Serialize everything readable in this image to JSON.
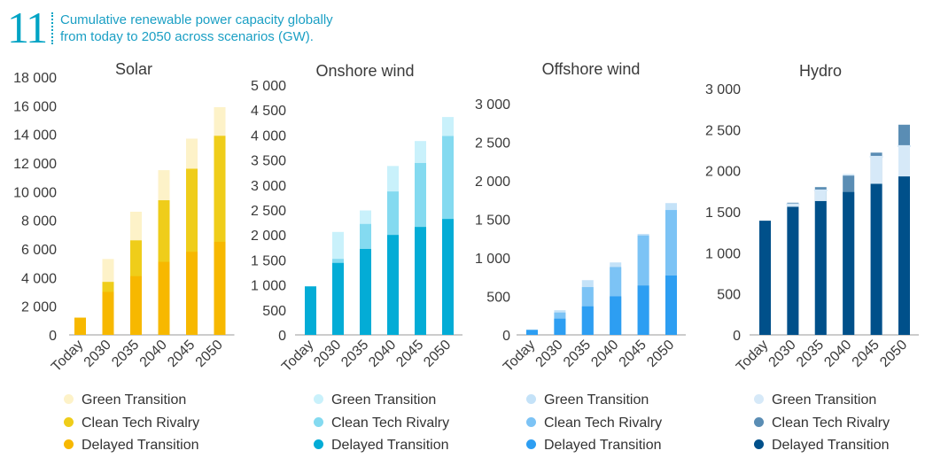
{
  "figure": {
    "number": "11",
    "title_line1": "Cumulative renewable power capacity globally",
    "title_line2": "from today to 2050 across scenarios (GW)."
  },
  "legend_labels": [
    "Green Transition",
    "Clean Tech Rivalry",
    "Delayed Transition"
  ],
  "chart_data": [
    {
      "type": "bar",
      "title": "Solar",
      "categories": [
        "Today",
        "2030",
        "2035",
        "2040",
        "2045",
        "2050"
      ],
      "ylim": [
        0,
        18000
      ],
      "yticks": [
        0,
        2000,
        4000,
        6000,
        8000,
        10000,
        12000,
        14000,
        16000,
        18000
      ],
      "ytick_labels": [
        "0",
        "2 000",
        "4 000",
        "6 000",
        "8 000",
        "10 000",
        "12 000",
        "14 000",
        "16 000",
        "18 000"
      ],
      "colors": {
        "Delayed Transition": "#f7b800",
        "Clean Tech Rivalry": "#efcd1a",
        "Green Transition": "#fdf2c8"
      },
      "series": [
        {
          "name": "Delayed Transition",
          "values": [
            1200,
            3000,
            4100,
            5100,
            5800,
            6500
          ]
        },
        {
          "name": "Clean Tech Rivalry",
          "values": [
            1200,
            3700,
            6600,
            9400,
            11600,
            13900
          ]
        },
        {
          "name": "Green Transition",
          "values": [
            1200,
            5300,
            8600,
            11500,
            13700,
            15900
          ]
        }
      ]
    },
    {
      "type": "bar",
      "title": "Onshore wind",
      "categories": [
        "Today",
        "2030",
        "2035",
        "2040",
        "2045",
        "2050"
      ],
      "ylim": [
        0,
        5000
      ],
      "yticks": [
        0,
        500,
        1000,
        1500,
        2000,
        2500,
        3000,
        3500,
        4000,
        4500,
        5000
      ],
      "ytick_labels": [
        "0",
        "500",
        "1 000",
        "1 500",
        "2 000",
        "2 500",
        "3 000",
        "3 500",
        "4 000",
        "4 500",
        "5 000"
      ],
      "colors": {
        "Delayed Transition": "#03acd6",
        "Clean Tech Rivalry": "#84daf0",
        "Green Transition": "#c9f1fb"
      },
      "series": [
        {
          "name": "Delayed Transition",
          "values": [
            970,
            1440,
            1720,
            2000,
            2160,
            2320
          ]
        },
        {
          "name": "Clean Tech Rivalry",
          "values": [
            970,
            1520,
            2220,
            2870,
            3440,
            3980
          ]
        },
        {
          "name": "Green Transition",
          "values": [
            970,
            2060,
            2490,
            3380,
            3880,
            4360
          ]
        }
      ]
    },
    {
      "type": "bar",
      "title": "Offshore wind",
      "categories": [
        "Today",
        "2030",
        "2035",
        "2040",
        "2045",
        "2050"
      ],
      "ylim": [
        0,
        3000
      ],
      "yticks": [
        0,
        500,
        1000,
        1500,
        2000,
        2500,
        3000
      ],
      "ytick_labels": [
        "0",
        "500",
        "1 000",
        "1 500",
        "2 000",
        "2 500",
        "3 000"
      ],
      "colors": {
        "Delayed Transition": "#2d9ef2",
        "Clean Tech Rivalry": "#7cc3f5",
        "Green Transition": "#c4e2f8"
      },
      "series": [
        {
          "name": "Delayed Transition",
          "values": [
            65,
            210,
            370,
            500,
            640,
            770
          ]
        },
        {
          "name": "Clean Tech Rivalry",
          "values": [
            65,
            290,
            620,
            880,
            1290,
            1620
          ]
        },
        {
          "name": "Green Transition",
          "values": [
            65,
            320,
            710,
            940,
            1310,
            1710
          ]
        }
      ]
    },
    {
      "type": "bar",
      "title": "Hydro",
      "categories": [
        "Today",
        "2030",
        "2035",
        "2040",
        "2045",
        "2050"
      ],
      "ylim": [
        0,
        3000
      ],
      "yticks": [
        0,
        500,
        1000,
        1500,
        2000,
        2500,
        3000
      ],
      "ytick_labels": [
        "0",
        "500",
        "1 000",
        "1 500",
        "2 000",
        "2 500",
        "3 000"
      ],
      "colors": {
        "Delayed Transition": "#00508a",
        "Clean Tech Rivalry": "#5a8db4",
        "Green Transition": "#d6e9f8"
      },
      "series": [
        {
          "name": "Delayed Transition",
          "values": [
            1390,
            1560,
            1630,
            1740,
            1840,
            1930
          ]
        },
        {
          "name": "Clean Tech Rivalry",
          "values": [
            1390,
            1610,
            1800,
            1940,
            2220,
            2560
          ]
        },
        {
          "name": "Green Transition",
          "values": [
            1390,
            1590,
            1760,
            1960,
            2170,
            2300
          ]
        }
      ]
    }
  ]
}
